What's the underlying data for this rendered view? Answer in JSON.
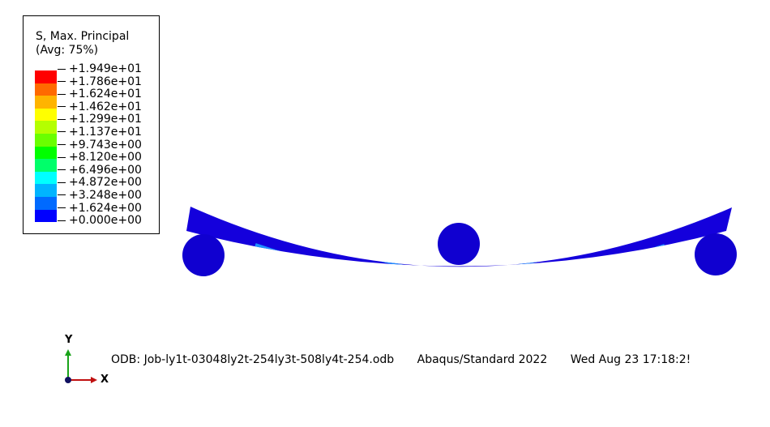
{
  "legend": {
    "title_line1": "S, Max. Principal",
    "title_line2": "(Avg: 75%)",
    "values": [
      "+1.949e+01",
      "+1.786e+01",
      "+1.624e+01",
      "+1.462e+01",
      "+1.299e+01",
      "+1.137e+01",
      "+9.743e+00",
      "+8.120e+00",
      "+6.496e+00",
      "+4.872e+00",
      "+3.248e+00",
      "+1.624e+00",
      "+0.000e+00"
    ],
    "colors": [
      "#ff0000",
      "#ff6a00",
      "#ffb400",
      "#ffff00",
      "#b4ff00",
      "#6aff00",
      "#00ff00",
      "#00ff6a",
      "#00ffff",
      "#00b4ff",
      "#006aff",
      "#0000ff"
    ]
  },
  "model_colors": {
    "beam_main": "#1400dc",
    "supports": "#1000d0",
    "band_light": "#1e90ff",
    "band_cyan": "#00e5d6",
    "band_green": "#6edc2a",
    "band_yellow": "#d8ff30"
  },
  "triad": {
    "y_label": "Y",
    "x_label": "X",
    "colors": {
      "y_axis": "#19a319",
      "x_axis": "#c01010",
      "z_axis": "#101060"
    }
  },
  "info": {
    "odb": "ODB: Job-ly1t-03048ly2t-254ly3t-508ly4t-254.odb",
    "solver": "Abaqus/Standard 2022",
    "timestamp": "Wed Aug 23 17:18:2!"
  }
}
